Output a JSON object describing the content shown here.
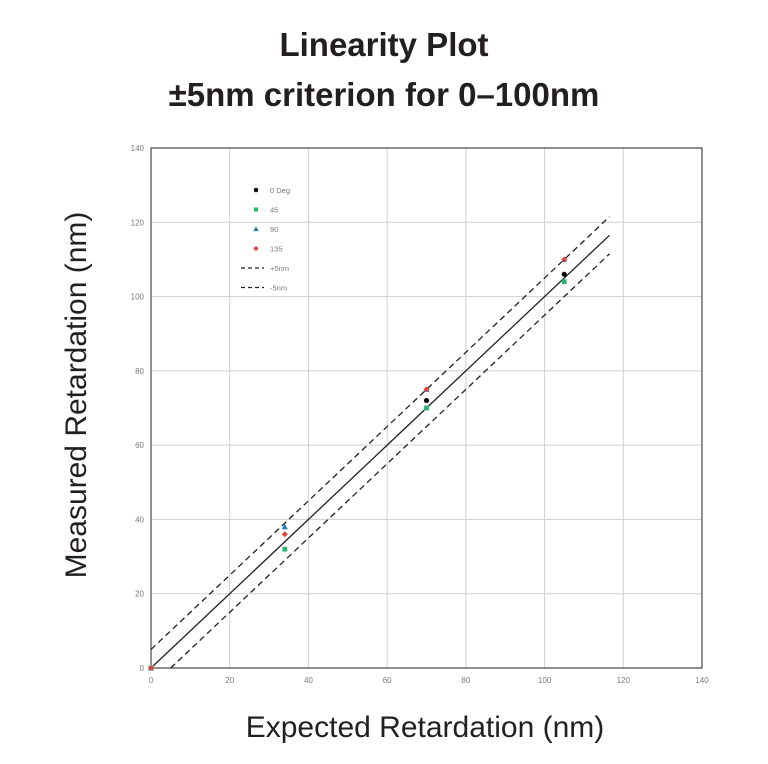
{
  "title_line1": "Linearity Plot",
  "title_line2": "±5nm criterion for 0–100nm",
  "chart_data": {
    "type": "scatter",
    "title": "Linearity Plot ±5nm criterion for 0–100nm",
    "xlabel": "Expected Retardation (nm)",
    "ylabel": "Measured Retardation (nm)",
    "xlim": [
      0,
      140
    ],
    "ylim": [
      0,
      140
    ],
    "xticks": [
      "0",
      "20",
      "40",
      "60",
      "80",
      "100",
      "120",
      "140"
    ],
    "yticks": [
      "0",
      "20",
      "40",
      "60",
      "80",
      "100",
      "120",
      "140"
    ],
    "grid": true,
    "legend_position": "top-left",
    "series": [
      {
        "name": "0 Deg",
        "marker": "circle",
        "color": "#000000",
        "points": [
          [
            0,
            0
          ],
          [
            70,
            72
          ],
          [
            105,
            106
          ]
        ]
      },
      {
        "name": "45",
        "marker": "square",
        "color": "#2ab573",
        "points": [
          [
            0,
            0
          ],
          [
            34,
            32
          ],
          [
            70,
            70
          ],
          [
            105,
            104
          ]
        ]
      },
      {
        "name": "90",
        "marker": "triangle",
        "color": "#1f77b4",
        "points": [
          [
            0,
            0
          ],
          [
            34,
            38
          ],
          [
            70,
            75
          ],
          [
            105,
            110
          ]
        ]
      },
      {
        "name": "135",
        "marker": "diamond",
        "color": "#e8413c",
        "points": [
          [
            0,
            0
          ],
          [
            34,
            36
          ],
          [
            70,
            75
          ],
          [
            105,
            110
          ]
        ]
      }
    ],
    "lines": [
      {
        "name": "",
        "style": "solid",
        "color": "#231f20",
        "points": [
          [
            0,
            0
          ],
          [
            116.5,
            116.5
          ]
        ]
      },
      {
        "name": "+5nm",
        "style": "dashed",
        "color": "#231f20",
        "points": [
          [
            0,
            5
          ],
          [
            116.5,
            121.5
          ]
        ]
      },
      {
        "name": "-5nm",
        "style": "dashed",
        "color": "#231f20",
        "points": [
          [
            5,
            0
          ],
          [
            116.5,
            111.5
          ]
        ]
      }
    ]
  }
}
